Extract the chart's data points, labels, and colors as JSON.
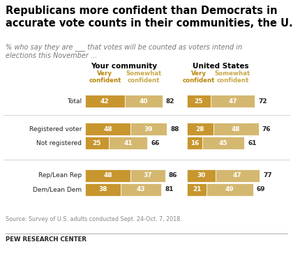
{
  "title": "Republicans more confident than Democrats in\naccurate vote counts in their communities, the U.S.",
  "subtitle": "% who say they are ___ that votes will be counted as voters intend in\nelections this November ...",
  "source": "Source: Survey of U.S. adults conducted Sept. 24-Oct. 7, 2018.",
  "footer": "PEW RESEARCH CENTER",
  "col_headers": [
    "Your community",
    "United States"
  ],
  "sub_headers_comm": [
    "Very\nconfident",
    "Somewhat\nconfident"
  ],
  "sub_headers_us": [
    "Very\nconfident",
    "Somewhat\nconfident"
  ],
  "rows": [
    {
      "label": "Total",
      "group": 0,
      "comm_very": 42,
      "comm_some": 40,
      "comm_total": 82,
      "us_very": 25,
      "us_some": 47,
      "us_total": 72
    },
    {
      "label": "Registered voter",
      "group": 1,
      "comm_very": 48,
      "comm_some": 39,
      "comm_total": 88,
      "us_very": 28,
      "us_some": 48,
      "us_total": 76
    },
    {
      "label": "Not registered",
      "group": 1,
      "comm_very": 25,
      "comm_some": 41,
      "comm_total": 66,
      "us_very": 16,
      "us_some": 45,
      "us_total": 61
    },
    {
      "label": "Rep/Lean Rep",
      "group": 2,
      "comm_very": 48,
      "comm_some": 37,
      "comm_total": 86,
      "us_very": 30,
      "us_some": 47,
      "us_total": 77
    },
    {
      "label": "Dem/Lean Dem",
      "group": 2,
      "comm_very": 38,
      "comm_some": 43,
      "comm_total": 81,
      "us_very": 21,
      "us_some": 49,
      "us_total": 69
    }
  ],
  "color_very": "#C8962E",
  "color_some": "#D4B870",
  "background": "#FFFFFF",
  "title_color": "#000000",
  "subtitle_color": "#777777",
  "label_color": "#222222",
  "header_color": "#000000",
  "subheader_very_color": "#B8860B",
  "subheader_some_color": "#C8A84B",
  "line_color": "#CCCCCC",
  "source_color": "#888888",
  "max_bar_val": 100,
  "scale_comm": 0.0021,
  "scale_us": 0.0021
}
